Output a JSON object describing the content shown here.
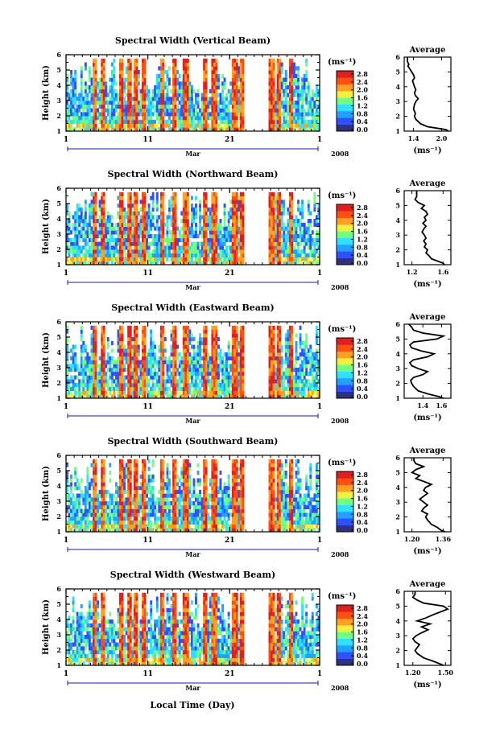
{
  "figure": {
    "x_common_label": "Local Time (Day)",
    "month_label": "Mar",
    "year_label": "2008",
    "unit_label": "(ms⁻¹)",
    "colorscale": [
      "#303080",
      "#3050ff",
      "#20a0ff",
      "#30e0ff",
      "#70ff80",
      "#f0f040",
      "#ffa020",
      "#ff5010",
      "#e02020"
    ]
  },
  "chart_data": [
    {
      "type": "heatmap",
      "title": "Spectral Width (Vertical Beam)",
      "xlabel": "Local Time (Day)",
      "ylabel": "Height (km)",
      "x_ticks": [
        "1",
        "11",
        "21",
        "1"
      ],
      "y_ticks": [
        "1",
        "2",
        "3",
        "4",
        "5",
        "6"
      ],
      "xlim": [
        1,
        32
      ],
      "ylim": [
        1,
        6
      ],
      "colorbar_label": "(ms⁻¹)",
      "colorbar_ticks": [
        "0.0",
        "0.4",
        "0.8",
        "1.2",
        "1.6",
        "2.0",
        "2.4",
        "2.8"
      ],
      "profile": {
        "title": "Average",
        "xlabel": "(ms⁻¹)",
        "x_ticks": [
          "1.4",
          "2.0"
        ],
        "xlim": [
          1.2,
          2.2
        ],
        "y": [
          1.0,
          1.1,
          1.2,
          1.3,
          1.5,
          1.8,
          2.0,
          2.2,
          2.5,
          2.8,
          3.0,
          3.2,
          3.4,
          3.6,
          3.8,
          4.0,
          4.2,
          4.4,
          4.6,
          4.8,
          5.0,
          5.2,
          5.4,
          5.5,
          5.7,
          6.0
        ],
        "values": [
          2.15,
          2.1,
          1.9,
          1.7,
          1.55,
          1.45,
          1.42,
          1.44,
          1.4,
          1.42,
          1.45,
          1.5,
          1.44,
          1.42,
          1.45,
          1.42,
          1.4,
          1.38,
          1.42,
          1.4,
          1.36,
          1.32,
          1.28,
          1.3,
          1.27,
          1.27
        ]
      }
    },
    {
      "type": "heatmap",
      "title": "Spectral Width (Northward Beam)",
      "xlabel": "Local Time (Day)",
      "ylabel": "Height (km)",
      "x_ticks": [
        "1",
        "11",
        "21",
        "1"
      ],
      "y_ticks": [
        "1",
        "2",
        "3",
        "4",
        "5",
        "6"
      ],
      "xlim": [
        1,
        32
      ],
      "ylim": [
        1,
        6
      ],
      "colorbar_label": "(ms⁻¹)",
      "colorbar_ticks": [
        "0.0",
        "0.4",
        "0.8",
        "1.2",
        "1.6",
        "2.0",
        "2.4",
        "2.8"
      ],
      "profile": {
        "title": "Average",
        "xlabel": "(ms⁻¹)",
        "x_ticks": [
          "1.2",
          "1.6"
        ],
        "xlim": [
          1.1,
          1.7
        ],
        "y": [
          1.0,
          1.1,
          1.2,
          1.4,
          1.6,
          1.8,
          2.0,
          2.2,
          2.4,
          2.6,
          2.8,
          3.0,
          3.2,
          3.4,
          3.6,
          3.8,
          4.0,
          4.2,
          4.4,
          4.6,
          4.8,
          5.0,
          5.2,
          5.4,
          5.6,
          5.8,
          6.0
        ],
        "values": [
          1.62,
          1.6,
          1.55,
          1.45,
          1.42,
          1.38,
          1.4,
          1.36,
          1.38,
          1.35,
          1.38,
          1.36,
          1.33,
          1.35,
          1.38,
          1.34,
          1.38,
          1.36,
          1.4,
          1.38,
          1.32,
          1.36,
          1.28,
          1.24,
          1.26,
          1.26,
          1.26
        ]
      }
    },
    {
      "type": "heatmap",
      "title": "Spectral Width (Eastward Beam)",
      "xlabel": "Local Time (Day)",
      "ylabel": "Height (km)",
      "x_ticks": [
        "1",
        "11",
        "21",
        "1"
      ],
      "y_ticks": [
        "1",
        "2",
        "3",
        "4",
        "5",
        "6"
      ],
      "xlim": [
        1,
        32
      ],
      "ylim": [
        1,
        6
      ],
      "colorbar_label": "(ms⁻¹)",
      "colorbar_ticks": [
        "0.0",
        "0.4",
        "0.8",
        "1.2",
        "1.6",
        "2.0",
        "2.4",
        "2.8"
      ],
      "profile": {
        "title": "Average",
        "xlabel": "(ms⁻¹)",
        "x_ticks": [
          "1.4",
          "1.6"
        ],
        "xlim": [
          1.2,
          1.7
        ],
        "y": [
          1.0,
          1.1,
          1.3,
          1.5,
          1.8,
          2.0,
          2.2,
          2.4,
          2.6,
          2.8,
          3.0,
          3.2,
          3.4,
          3.6,
          3.8,
          4.0,
          4.2,
          4.4,
          4.6,
          4.8,
          5.0,
          5.2,
          5.4,
          5.6,
          5.8,
          6.0
        ],
        "values": [
          1.62,
          1.58,
          1.45,
          1.35,
          1.3,
          1.28,
          1.27,
          1.3,
          1.4,
          1.45,
          1.35,
          1.28,
          1.26,
          1.3,
          1.45,
          1.52,
          1.38,
          1.28,
          1.26,
          1.3,
          1.55,
          1.62,
          1.4,
          1.3,
          1.28,
          1.25
        ]
      }
    },
    {
      "type": "heatmap",
      "title": "Spectral Width (Southward Beam)",
      "xlabel": "Local Time (Day)",
      "ylabel": "Height (km)",
      "x_ticks": [
        "1",
        "11",
        "21",
        "1"
      ],
      "y_ticks": [
        "1",
        "2",
        "3",
        "4",
        "5",
        "6"
      ],
      "xlim": [
        1,
        32
      ],
      "ylim": [
        1,
        6
      ],
      "colorbar_label": "(ms⁻¹)",
      "colorbar_ticks": [
        "0.0",
        "0.4",
        "0.8",
        "1.2",
        "1.6",
        "2.0",
        "2.4",
        "2.8"
      ],
      "profile": {
        "title": "Average",
        "xlabel": "(ms⁻¹)",
        "x_ticks": [
          "1.20",
          "1.36"
        ],
        "xlim": [
          1.16,
          1.4
        ],
        "y": [
          1.0,
          1.1,
          1.3,
          1.5,
          1.8,
          2.0,
          2.2,
          2.4,
          2.6,
          2.8,
          3.0,
          3.2,
          3.4,
          3.6,
          3.8,
          4.0,
          4.2,
          4.4,
          4.6,
          4.8,
          5.0,
          5.2,
          5.4,
          5.6,
          5.8,
          6.0
        ],
        "values": [
          1.37,
          1.35,
          1.33,
          1.3,
          1.28,
          1.27,
          1.28,
          1.25,
          1.26,
          1.28,
          1.26,
          1.24,
          1.26,
          1.28,
          1.26,
          1.27,
          1.3,
          1.26,
          1.22,
          1.24,
          1.2,
          1.22,
          1.26,
          1.22,
          1.21,
          1.21
        ]
      }
    },
    {
      "type": "heatmap",
      "title": "Spectral Width (Westward Beam)",
      "xlabel": "Local Time (Day)",
      "ylabel": "Height (km)",
      "x_ticks": [
        "1",
        "11",
        "21",
        "1"
      ],
      "y_ticks": [
        "1",
        "2",
        "3",
        "4",
        "5",
        "6"
      ],
      "xlim": [
        1,
        32
      ],
      "ylim": [
        1,
        6
      ],
      "colorbar_label": "(ms⁻¹)",
      "colorbar_ticks": [
        "0.0",
        "0.4",
        "0.8",
        "1.2",
        "1.6",
        "2.0",
        "2.4",
        "2.8"
      ],
      "profile": {
        "title": "Average",
        "xlabel": "(ms⁻¹)",
        "x_ticks": [
          "1.20",
          "1.50"
        ],
        "xlim": [
          1.12,
          1.55
        ],
        "y": [
          1.0,
          1.1,
          1.3,
          1.5,
          1.8,
          2.0,
          2.2,
          2.4,
          2.6,
          2.8,
          3.0,
          3.2,
          3.4,
          3.6,
          3.8,
          4.0,
          4.2,
          4.4,
          4.6,
          4.8,
          5.0,
          5.2,
          5.4,
          5.6,
          5.8,
          6.0
        ],
        "values": [
          1.48,
          1.45,
          1.38,
          1.3,
          1.24,
          1.22,
          1.24,
          1.26,
          1.22,
          1.2,
          1.23,
          1.28,
          1.34,
          1.28,
          1.36,
          1.24,
          1.32,
          1.38,
          1.45,
          1.52,
          1.48,
          1.3,
          1.24,
          1.2,
          1.22,
          1.22
        ]
      }
    }
  ]
}
